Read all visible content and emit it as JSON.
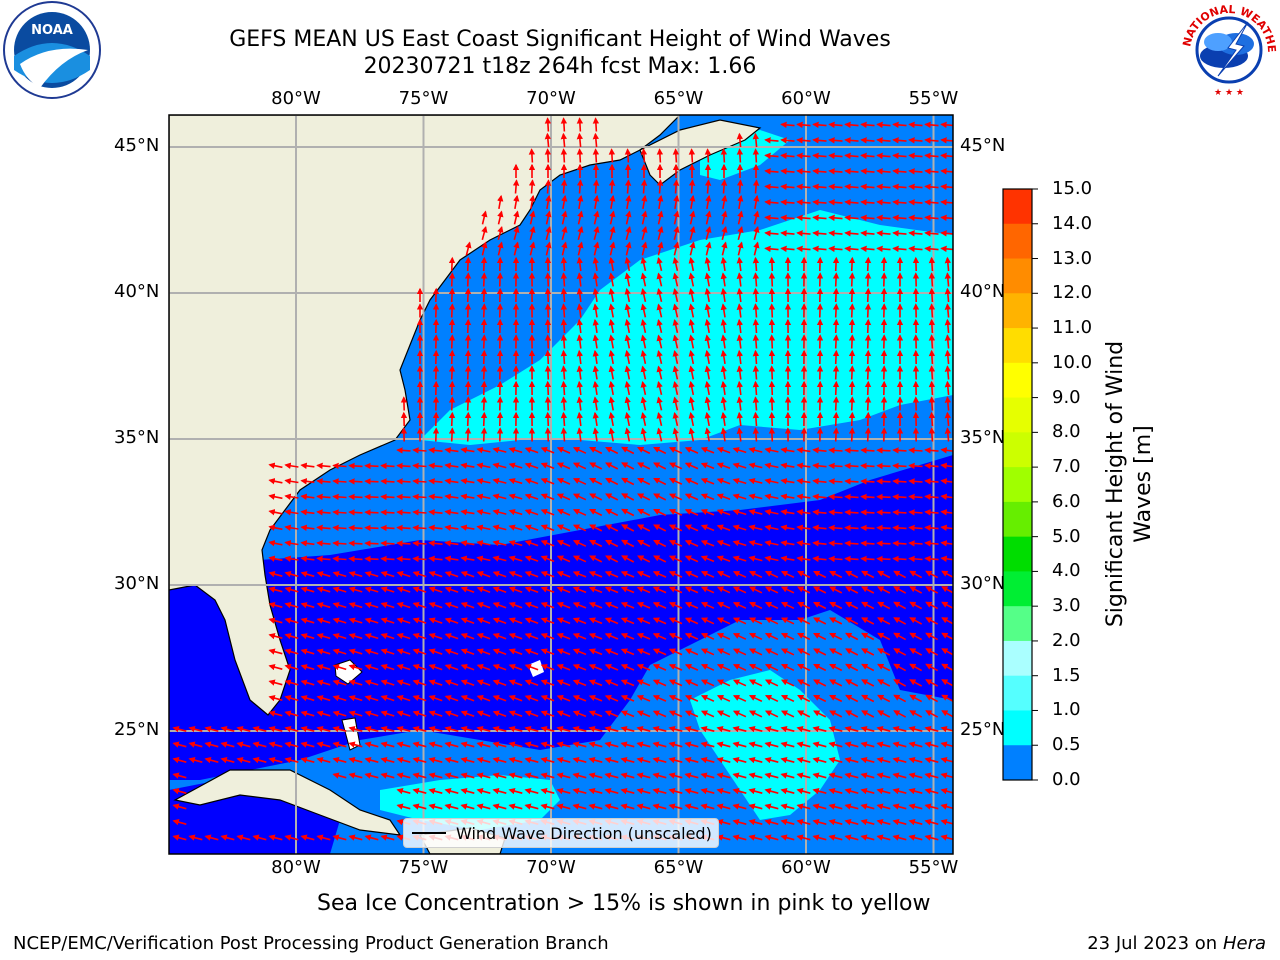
{
  "title": {
    "line1": "GEFS MEAN US East Coast Significant Height of Wind Waves",
    "line2": "20230721 t18z 264h fcst   Max: 1.66"
  },
  "map": {
    "lon_labels": [
      "80°W",
      "75°W",
      "70°W",
      "65°W",
      "60°W",
      "55°W"
    ],
    "lat_labels": [
      "45°N",
      "40°N",
      "35°N",
      "30°N",
      "25°N"
    ],
    "extent": {
      "lon": [
        -85,
        -54.3
      ],
      "lat": [
        20.5,
        45.8
      ]
    },
    "gridlines": true
  },
  "legend": {
    "label": "Wind Wave Direction (unscaled)"
  },
  "colorbar": {
    "label": "Significant Height of Wind Waves [m]",
    "ticks": [
      "15.0",
      "14.0",
      "13.0",
      "12.0",
      "11.0",
      "10.0",
      "9.0",
      "8.0",
      "7.0",
      "6.0",
      "5.0",
      "4.0",
      "3.0",
      "2.0",
      "1.5",
      "1.0",
      "0.5",
      "0.0"
    ],
    "colors": [
      "#ff0000",
      "#ff3300",
      "#ff6600",
      "#ff8c00",
      "#ffb300",
      "#ffdd00",
      "#ffff00",
      "#e6ff00",
      "#ccff00",
      "#a0ff00",
      "#66ee00",
      "#00dd00",
      "#00ee33",
      "#55ff88",
      "#aaffff",
      "#55ffff",
      "#00ffff",
      "#0080ff",
      "#0000ff"
    ]
  },
  "caption": "Sea Ice Concentration > 15% is shown in pink to yellow",
  "footer": {
    "left": "NCEP/EMC/Verification Post Processing Product Generation Branch",
    "right_prefix": "23 Jul 2023 on ",
    "right_machine": "Hera"
  },
  "logos": {
    "left": "NOAA",
    "right": "NATIONAL WEATHER SERVICE"
  },
  "theme": {
    "land": "#efefdc",
    "band_0_05": "#0000ff",
    "band_05_1": "#0080ff",
    "band_1_15": "#00ffff",
    "arrow": "#ff0000"
  }
}
